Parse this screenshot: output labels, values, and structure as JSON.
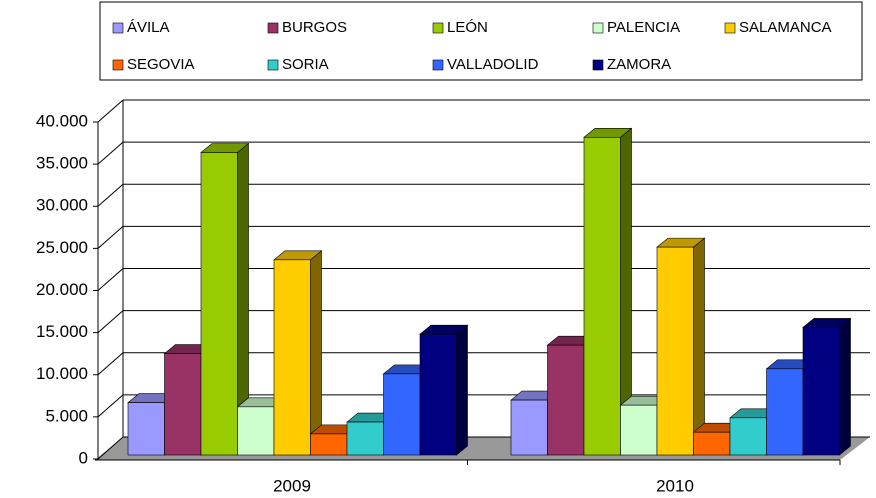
{
  "chart_data": {
    "type": "bar3d",
    "categories": [
      "2009",
      "2010"
    ],
    "series": [
      {
        "name": "ÁVILA",
        "color": "#9999ff",
        "values": [
          6200,
          6500
        ]
      },
      {
        "name": "BURGOS",
        "color": "#993366",
        "values": [
          12000,
          13000
        ]
      },
      {
        "name": "LEÓN",
        "color": "#99cc00",
        "values": [
          35800,
          37600
        ]
      },
      {
        "name": "PALENCIA",
        "color": "#ccffcc",
        "values": [
          5700,
          5900
        ]
      },
      {
        "name": "SALAMANCA",
        "color": "#ffcc00",
        "values": [
          23100,
          24600
        ]
      },
      {
        "name": "SEGOVIA",
        "color": "#ff6600",
        "values": [
          2500,
          2700
        ]
      },
      {
        "name": "SORIA",
        "color": "#33cccc",
        "values": [
          3900,
          4400
        ]
      },
      {
        "name": "VALLADOLID",
        "color": "#3366ff",
        "values": [
          9600,
          10200
        ]
      },
      {
        "name": "ZAMORA",
        "color": "#000080",
        "values": [
          14300,
          15100
        ]
      }
    ],
    "ylim": [
      0,
      40000
    ],
    "yticks": [
      0,
      {
        "value": 5000,
        "label": "5.000"
      },
      {
        "value": 10000,
        "label": "10.000"
      },
      {
        "value": 15000,
        "label": "15.000"
      },
      {
        "value": 20000,
        "label": "20.000"
      },
      {
        "value": 25000,
        "label": "25.000"
      },
      {
        "value": 30000,
        "label": "30.000"
      },
      {
        "value": 35000,
        "label": "35.000"
      },
      {
        "value": 40000,
        "label": "40.000"
      }
    ],
    "grid": true,
    "legend": "top"
  }
}
